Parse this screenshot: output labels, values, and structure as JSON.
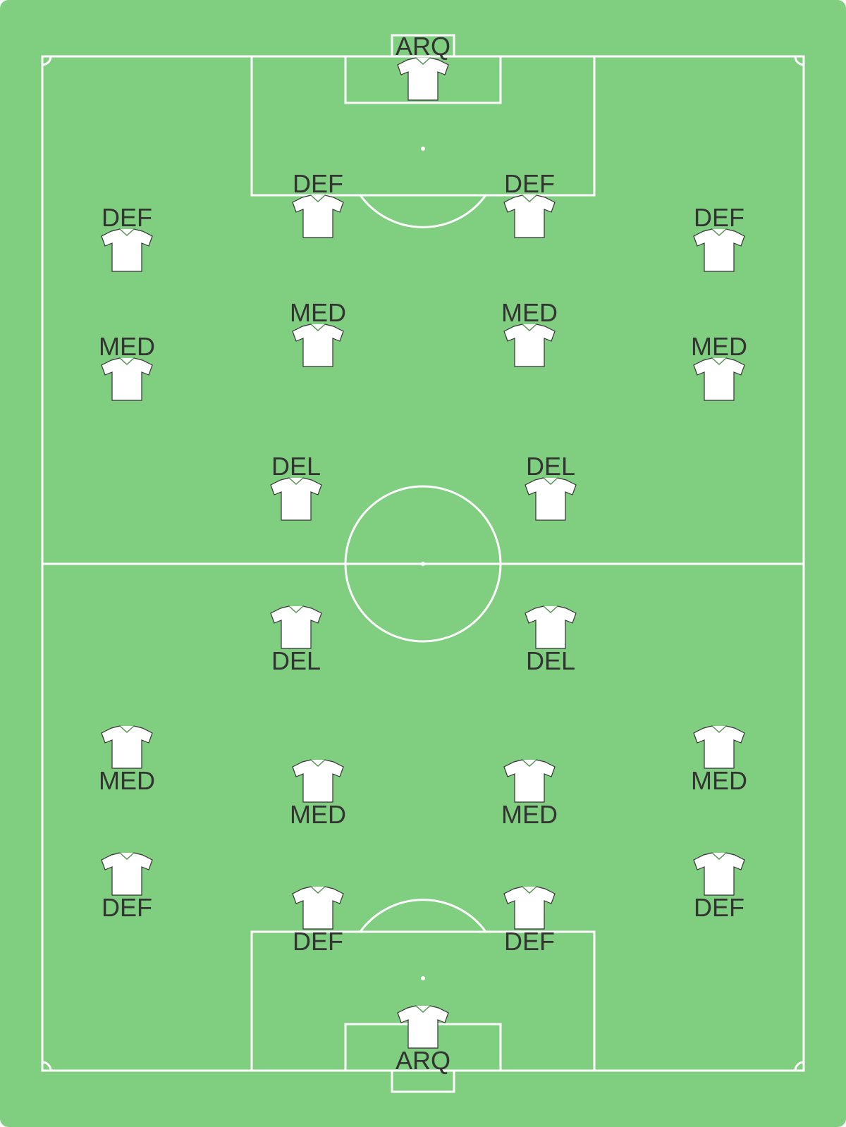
{
  "colors": {
    "pitch": "#80ce80",
    "lines": "#ffffff",
    "label_text": "#333333",
    "shirt": "#ffffff",
    "shirt_outline": "#333333"
  },
  "icon": "jersey-icon",
  "teams": {
    "top": {
      "players": [
        {
          "role": "ARQ"
        },
        {
          "role": "DEF"
        },
        {
          "role": "DEF"
        },
        {
          "role": "DEF"
        },
        {
          "role": "DEF"
        },
        {
          "role": "MED"
        },
        {
          "role": "MED"
        },
        {
          "role": "MED"
        },
        {
          "role": "MED"
        },
        {
          "role": "DEL"
        },
        {
          "role": "DEL"
        }
      ]
    },
    "bottom": {
      "players": [
        {
          "role": "DEL"
        },
        {
          "role": "DEL"
        },
        {
          "role": "MED"
        },
        {
          "role": "MED"
        },
        {
          "role": "MED"
        },
        {
          "role": "MED"
        },
        {
          "role": "DEF"
        },
        {
          "role": "DEF"
        },
        {
          "role": "DEF"
        },
        {
          "role": "DEF"
        },
        {
          "role": "ARQ"
        }
      ]
    }
  }
}
